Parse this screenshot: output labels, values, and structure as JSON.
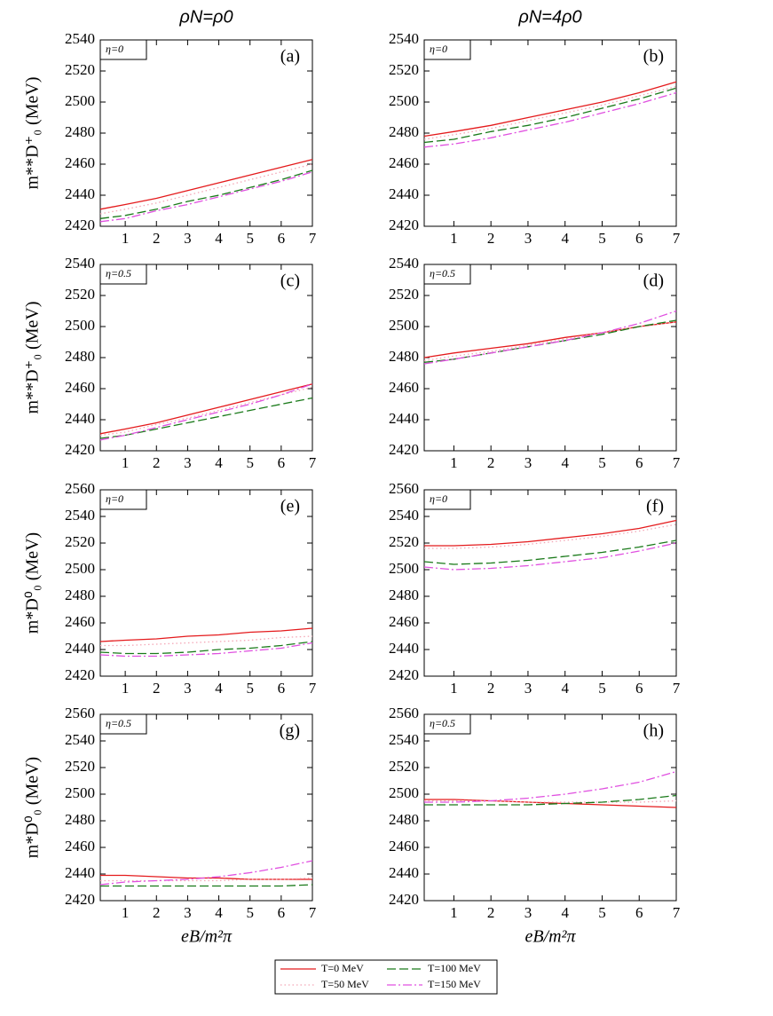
{
  "chart_data": [
    {
      "type": "line",
      "title": "ρN=ρ0",
      "ylabel": "m**D⁺₀ (MeV)",
      "annotation": "η=0",
      "panel_label": "(a)",
      "x": [
        0.2,
        1,
        2,
        3,
        4,
        5,
        6,
        7
      ],
      "xlim": [
        0.2,
        7
      ],
      "xticks": [
        1,
        2,
        3,
        4,
        5,
        6,
        7
      ],
      "ylim": [
        2420,
        2540
      ],
      "yticks": [
        2420,
        2440,
        2460,
        2480,
        2500,
        2520,
        2540
      ],
      "series": [
        {
          "name": "T=0 MeV",
          "color": "#e41a1c",
          "style": "solid",
          "values": [
            2431,
            2434,
            2438,
            2443,
            2448,
            2453,
            2458,
            2463
          ]
        },
        {
          "name": "T=50 MeV",
          "color": "#f4a6b6",
          "style": "dotted",
          "values": [
            2428,
            2431,
            2435,
            2440,
            2445,
            2450,
            2455,
            2460
          ]
        },
        {
          "name": "T=100 MeV",
          "color": "#1a7a1a",
          "style": "dashed",
          "values": [
            2425,
            2427,
            2431,
            2436,
            2440,
            2445,
            2450,
            2456
          ]
        },
        {
          "name": "T=150 MeV",
          "color": "#e050e0",
          "style": "dashdot",
          "values": [
            2423,
            2425,
            2430,
            2434,
            2439,
            2444,
            2449,
            2455
          ]
        }
      ]
    },
    {
      "type": "line",
      "title": "ρN=4ρ0",
      "annotation": "η=0",
      "panel_label": "(b)",
      "x": [
        0.2,
        1,
        2,
        3,
        4,
        5,
        6,
        7
      ],
      "xlim": [
        0.2,
        7
      ],
      "xticks": [
        1,
        2,
        3,
        4,
        5,
        6,
        7
      ],
      "ylim": [
        2420,
        2540
      ],
      "yticks": [
        2420,
        2440,
        2460,
        2480,
        2500,
        2520,
        2540
      ],
      "series": [
        {
          "color": "#e41a1c",
          "style": "solid",
          "values": [
            2478,
            2481,
            2485,
            2490,
            2495,
            2500,
            2506,
            2513
          ]
        },
        {
          "color": "#f4a6b6",
          "style": "dotted",
          "values": [
            2476,
            2479,
            2483,
            2488,
            2493,
            2498,
            2504,
            2510
          ]
        },
        {
          "color": "#1a7a1a",
          "style": "dashed",
          "values": [
            2474,
            2476,
            2481,
            2485,
            2490,
            2496,
            2502,
            2509
          ]
        },
        {
          "color": "#e050e0",
          "style": "dashdot",
          "values": [
            2471,
            2473,
            2477,
            2482,
            2487,
            2493,
            2499,
            2506
          ]
        }
      ]
    },
    {
      "type": "line",
      "ylabel": "m**D⁺₀ (MeV)",
      "annotation": "η=0.5",
      "panel_label": "(c)",
      "x": [
        0.2,
        1,
        2,
        3,
        4,
        5,
        6,
        7
      ],
      "xlim": [
        0.2,
        7
      ],
      "xticks": [
        1,
        2,
        3,
        4,
        5,
        6,
        7
      ],
      "ylim": [
        2420,
        2540
      ],
      "yticks": [
        2420,
        2440,
        2460,
        2480,
        2500,
        2520,
        2540
      ],
      "series": [
        {
          "color": "#e41a1c",
          "style": "solid",
          "values": [
            2431,
            2434,
            2438,
            2443,
            2448,
            2453,
            2458,
            2463
          ]
        },
        {
          "color": "#f4a6b6",
          "style": "dotted",
          "values": [
            2430,
            2432,
            2437,
            2441,
            2446,
            2451,
            2456,
            2461
          ]
        },
        {
          "color": "#1a7a1a",
          "style": "dashed",
          "values": [
            2428,
            2430,
            2434,
            2438,
            2442,
            2446,
            2450,
            2454
          ]
        },
        {
          "color": "#e050e0",
          "style": "dashdot",
          "values": [
            2427,
            2430,
            2435,
            2440,
            2445,
            2450,
            2456,
            2463
          ]
        }
      ]
    },
    {
      "type": "line",
      "annotation": "η=0.5",
      "panel_label": "(d)",
      "x": [
        0.2,
        1,
        2,
        3,
        4,
        5,
        6,
        7
      ],
      "xlim": [
        0.2,
        7
      ],
      "xticks": [
        1,
        2,
        3,
        4,
        5,
        6,
        7
      ],
      "ylim": [
        2420,
        2540
      ],
      "yticks": [
        2420,
        2440,
        2460,
        2480,
        2500,
        2520,
        2540
      ],
      "series": [
        {
          "color": "#e41a1c",
          "style": "solid",
          "values": [
            2480,
            2483,
            2486,
            2489,
            2493,
            2496,
            2500,
            2503
          ]
        },
        {
          "color": "#f4a6b6",
          "style": "dotted",
          "values": [
            2478,
            2481,
            2484,
            2488,
            2492,
            2496,
            2500,
            2503
          ]
        },
        {
          "color": "#1a7a1a",
          "style": "dashed",
          "values": [
            2477,
            2479,
            2483,
            2487,
            2491,
            2495,
            2500,
            2504
          ]
        },
        {
          "color": "#e050e0",
          "style": "dashdot",
          "values": [
            2476,
            2479,
            2483,
            2487,
            2491,
            2496,
            2502,
            2510
          ]
        }
      ]
    },
    {
      "type": "line",
      "ylabel": "m*D⁰₀ (MeV)",
      "annotation": "η=0",
      "panel_label": "(e)",
      "x": [
        0.2,
        1,
        2,
        3,
        4,
        5,
        6,
        7
      ],
      "xlim": [
        0.2,
        7
      ],
      "xticks": [
        1,
        2,
        3,
        4,
        5,
        6,
        7
      ],
      "ylim": [
        2420,
        2560
      ],
      "yticks": [
        2420,
        2440,
        2460,
        2480,
        2500,
        2520,
        2540,
        2560
      ],
      "series": [
        {
          "color": "#e41a1c",
          "style": "solid",
          "values": [
            2446,
            2447,
            2448,
            2450,
            2451,
            2453,
            2454,
            2456
          ]
        },
        {
          "color": "#f4a6b6",
          "style": "dotted",
          "values": [
            2443,
            2443,
            2444,
            2445,
            2446,
            2447,
            2449,
            2450
          ]
        },
        {
          "color": "#1a7a1a",
          "style": "dashed",
          "values": [
            2438,
            2437,
            2437,
            2438,
            2440,
            2441,
            2443,
            2446
          ]
        },
        {
          "color": "#e050e0",
          "style": "dashdot",
          "values": [
            2436,
            2435,
            2435,
            2436,
            2437,
            2439,
            2441,
            2445
          ]
        }
      ]
    },
    {
      "type": "line",
      "annotation": "η=0",
      "panel_label": "(f)",
      "x": [
        0.2,
        1,
        2,
        3,
        4,
        5,
        6,
        7
      ],
      "xlim": [
        0.2,
        7
      ],
      "xticks": [
        1,
        2,
        3,
        4,
        5,
        6,
        7
      ],
      "ylim": [
        2420,
        2560
      ],
      "yticks": [
        2420,
        2440,
        2460,
        2480,
        2500,
        2520,
        2540,
        2560
      ],
      "series": [
        {
          "color": "#e41a1c",
          "style": "solid",
          "values": [
            2518,
            2518,
            2519,
            2521,
            2524,
            2527,
            2531,
            2537
          ]
        },
        {
          "color": "#f4a6b6",
          "style": "dotted",
          "values": [
            2516,
            2516,
            2517,
            2519,
            2522,
            2525,
            2529,
            2534
          ]
        },
        {
          "color": "#1a7a1a",
          "style": "dashed",
          "values": [
            2506,
            2504,
            2505,
            2507,
            2510,
            2513,
            2517,
            2522
          ]
        },
        {
          "color": "#e050e0",
          "style": "dashdot",
          "values": [
            2502,
            2500,
            2501,
            2503,
            2506,
            2509,
            2514,
            2520
          ]
        }
      ]
    },
    {
      "type": "line",
      "ylabel": "m*D⁰₀ (MeV)",
      "xlabel": "eB/m²π",
      "annotation": "η=0.5",
      "panel_label": "(g)",
      "x": [
        0.2,
        1,
        2,
        3,
        4,
        5,
        6,
        7
      ],
      "xlim": [
        0.2,
        7
      ],
      "xticks": [
        1,
        2,
        3,
        4,
        5,
        6,
        7
      ],
      "ylim": [
        2420,
        2560
      ],
      "yticks": [
        2420,
        2440,
        2460,
        2480,
        2500,
        2520,
        2540,
        2560
      ],
      "series": [
        {
          "color": "#e41a1c",
          "style": "solid",
          "values": [
            2439,
            2439,
            2438,
            2437,
            2437,
            2436,
            2436,
            2436
          ]
        },
        {
          "color": "#f4a6b6",
          "style": "dotted",
          "values": [
            2435,
            2435,
            2435,
            2435,
            2435,
            2436,
            2436,
            2437
          ]
        },
        {
          "color": "#1a7a1a",
          "style": "dashed",
          "values": [
            2431,
            2431,
            2431,
            2431,
            2431,
            2431,
            2431,
            2432
          ]
        },
        {
          "color": "#e050e0",
          "style": "dashdot",
          "values": [
            2432,
            2434,
            2435,
            2436,
            2438,
            2441,
            2445,
            2450
          ]
        }
      ]
    },
    {
      "type": "line",
      "xlabel": "eB/m²π",
      "annotation": "η=0.5",
      "panel_label": "(h)",
      "x": [
        0.2,
        1,
        2,
        3,
        4,
        5,
        6,
        7
      ],
      "xlim": [
        0.2,
        7
      ],
      "xticks": [
        1,
        2,
        3,
        4,
        5,
        6,
        7
      ],
      "ylim": [
        2420,
        2560
      ],
      "yticks": [
        2420,
        2440,
        2460,
        2480,
        2500,
        2520,
        2540,
        2560
      ],
      "series": [
        {
          "color": "#e41a1c",
          "style": "solid",
          "values": [
            2496,
            2496,
            2495,
            2494,
            2493,
            2492,
            2491,
            2490
          ]
        },
        {
          "color": "#f4a6b6",
          "style": "dotted",
          "values": [
            2495,
            2495,
            2495,
            2494,
            2494,
            2494,
            2494,
            2495
          ]
        },
        {
          "color": "#1a7a1a",
          "style": "dashed",
          "values": [
            2492,
            2492,
            2492,
            2492,
            2493,
            2494,
            2496,
            2499
          ]
        },
        {
          "color": "#e050e0",
          "style": "dashdot",
          "values": [
            2494,
            2494,
            2495,
            2497,
            2500,
            2504,
            2509,
            2517
          ]
        }
      ]
    }
  ]
}
